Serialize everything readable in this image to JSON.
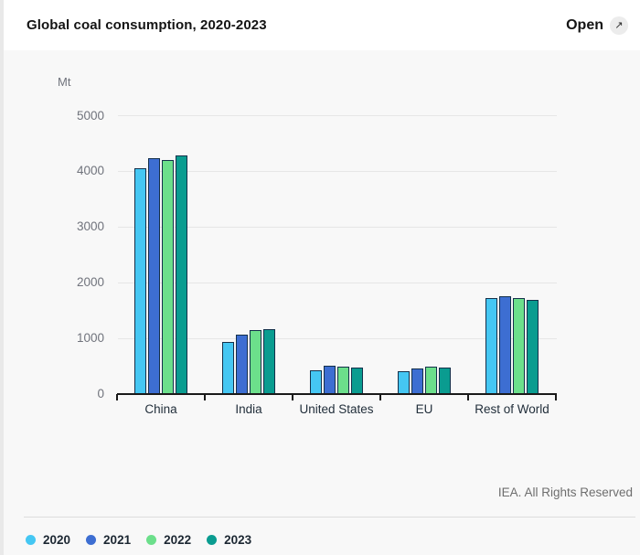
{
  "header": {
    "title": "Global coal consumption, 2020-2023",
    "open_label": "Open",
    "open_icon": "↗"
  },
  "footer": {
    "attribution": "IEA. All Rights Reserved"
  },
  "chart_data": {
    "type": "bar",
    "title": "Global coal consumption, 2020-2023",
    "unit_label": "Mt",
    "categories": [
      "China",
      "India",
      "United States",
      "EU",
      "Rest of World"
    ],
    "series": [
      {
        "name": "2020",
        "color": "#45c7f3",
        "values": [
          4060,
          940,
          430,
          410,
          1720
        ]
      },
      {
        "name": "2021",
        "color": "#3d6ed2",
        "values": [
          4240,
          1060,
          510,
          460,
          1750
        ]
      },
      {
        "name": "2022",
        "color": "#6cdf8b",
        "values": [
          4210,
          1150,
          490,
          500,
          1720
        ]
      },
      {
        "name": "2023",
        "color": "#0a9c90",
        "values": [
          4280,
          1170,
          480,
          470,
          1690
        ]
      }
    ],
    "ylim": [
      0,
      5000
    ],
    "yticks": [
      0,
      1000,
      2000,
      3000,
      4000,
      5000
    ],
    "grid": true,
    "legend_position": "bottom"
  },
  "colors": {
    "bar_border": "#14304a",
    "gridline": "#e6e6e6",
    "axis": "#1a1a1a",
    "open_button_bg": "#ececec",
    "page_bg": "#f8f8f8",
    "header_bg": "#ffffff"
  }
}
